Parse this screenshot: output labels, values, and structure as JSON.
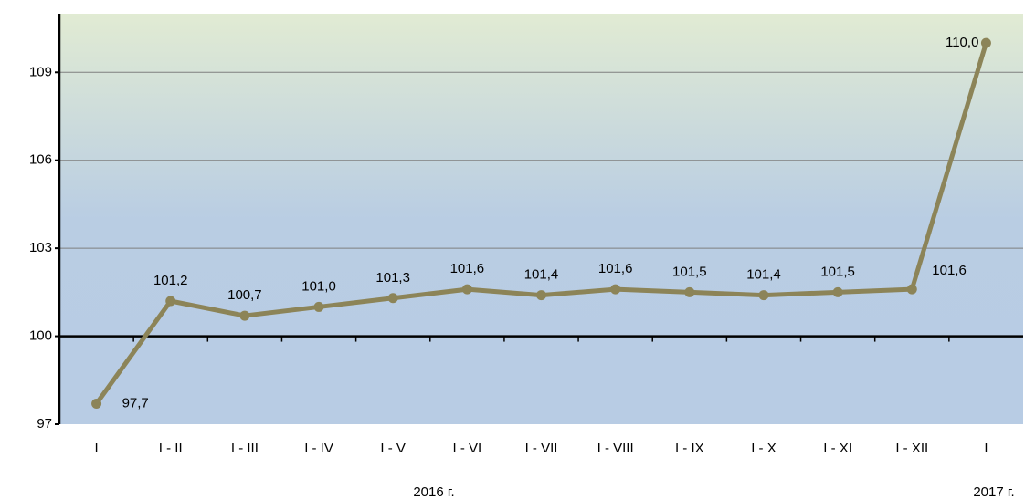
{
  "chart_data": {
    "type": "line",
    "categories": [
      "I",
      "I - II",
      "I - III",
      "I - IV",
      "I - V",
      "I - VI",
      "I - VII",
      "I - VIII",
      "I - IX",
      "I - X",
      "I - XI",
      "I - XII",
      "I"
    ],
    "series": [
      {
        "color": "#8c8458",
        "values": [
          97.7,
          101.2,
          100.7,
          101.0,
          101.3,
          101.6,
          101.4,
          101.6,
          101.5,
          101.4,
          101.5,
          101.6,
          110.0
        ],
        "value_labels": [
          "97,7",
          "101,2",
          "100,7",
          "101,0",
          "101,3",
          "101,6",
          "101,4",
          "101,6",
          "101,5",
          "101,4",
          "101,5",
          "101,6",
          "110,0"
        ]
      }
    ],
    "groups": [
      "2016 г.",
      "2017 г."
    ],
    "ylim": [
      97,
      111
    ],
    "yticks": [
      97,
      100,
      103,
      106,
      109
    ],
    "x_axis_crosses": 100,
    "grid": true
  }
}
